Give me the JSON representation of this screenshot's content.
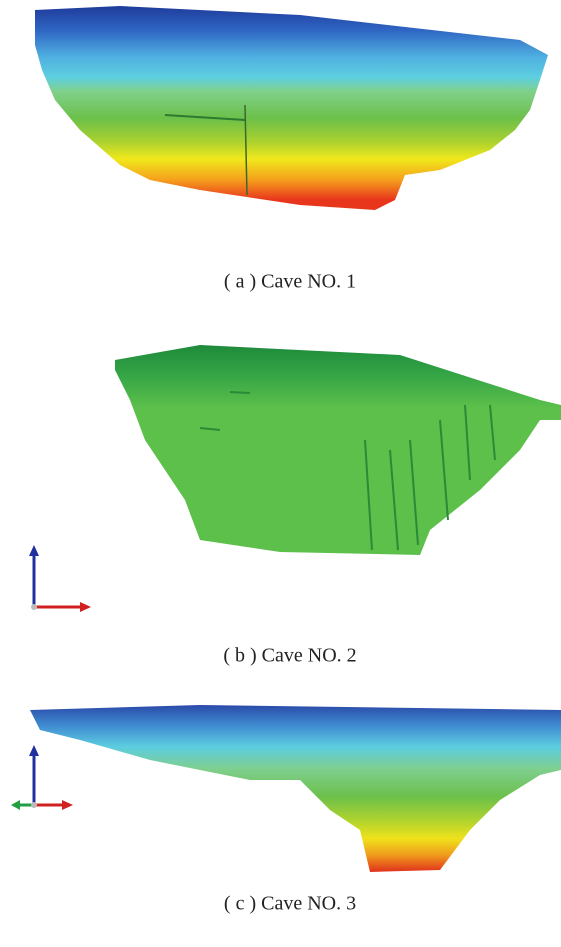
{
  "captions": [
    "( a ) Cave NO. 1",
    "( b ) Cave NO. 2",
    "( c ) Cave NO. 3"
  ]
}
